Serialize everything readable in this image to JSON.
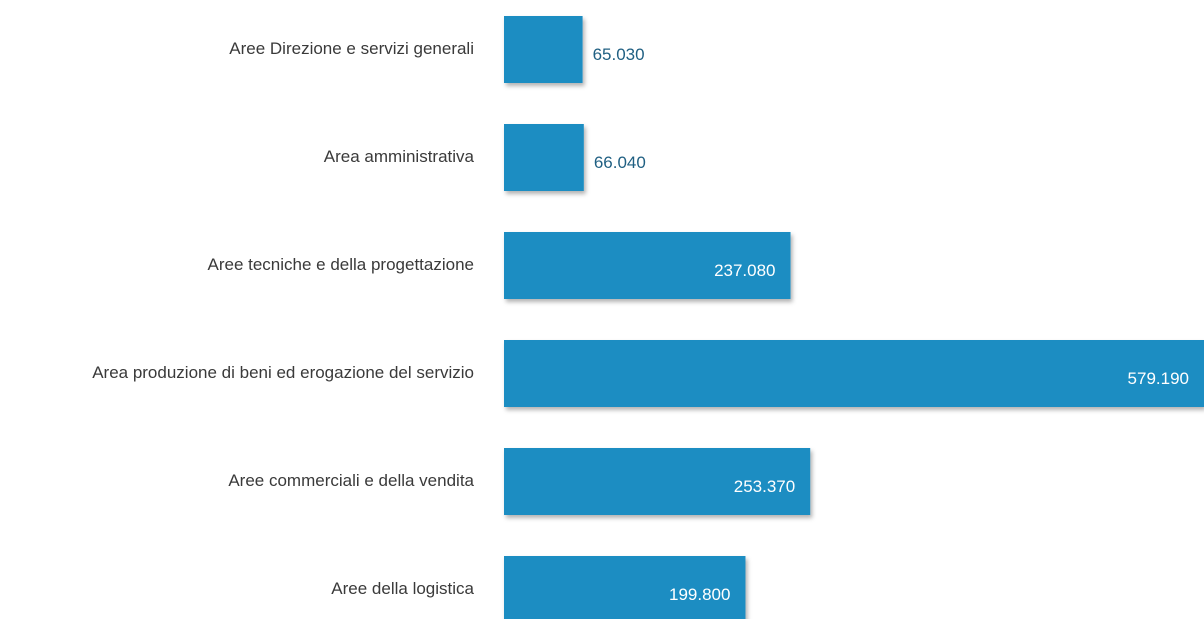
{
  "chart_data": {
    "type": "hbar",
    "categories": [
      "Aree Direzione e servizi generali",
      "Area amministrativa",
      "Aree tecniche e della progettazione",
      "Area produzione di beni ed erogazione del servizio",
      "Aree commerciali e della vendita",
      "Aree della logistica"
    ],
    "values": [
      65030,
      66040,
      237080,
      579190,
      253370,
      199800
    ],
    "value_labels": [
      "65.030",
      "66.040",
      "237.080",
      "579.190",
      "253.370",
      "199.800"
    ],
    "color": "#1b8dc2"
  }
}
